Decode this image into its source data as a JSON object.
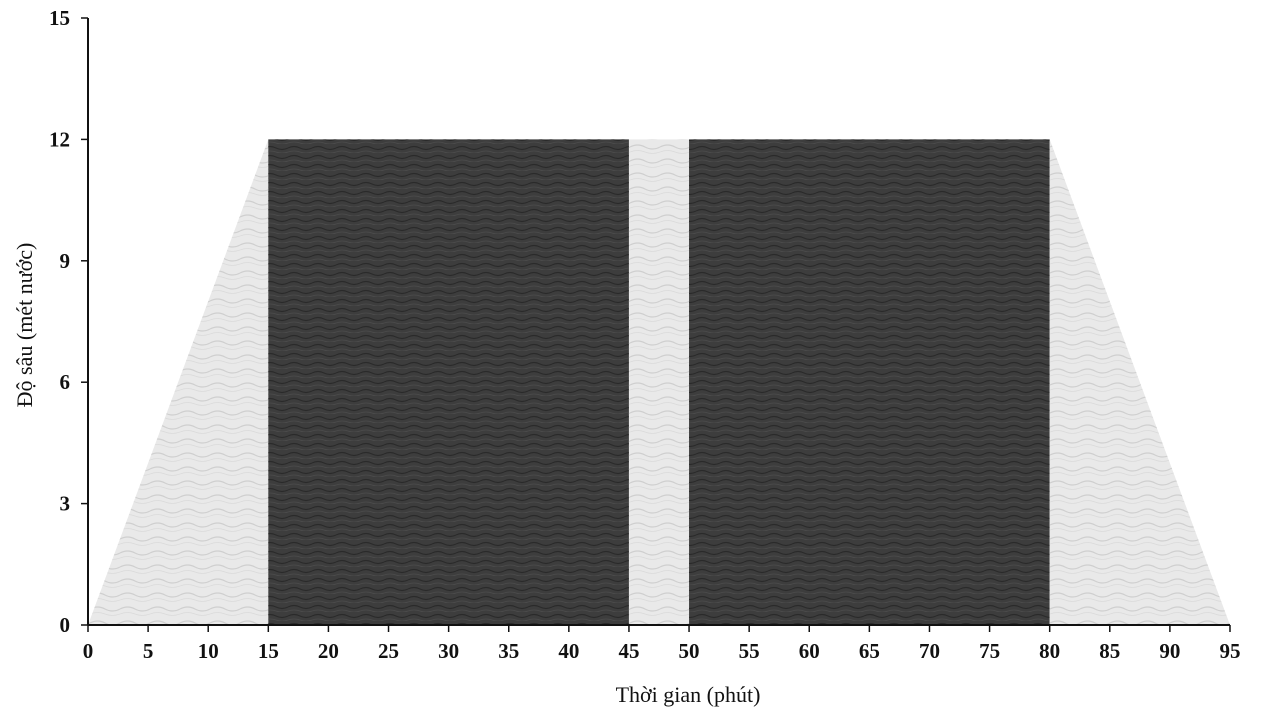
{
  "chart_data": {
    "type": "area",
    "title": "",
    "xlabel": "Thời gian (phút)",
    "ylabel": "Độ sâu (mét nước)",
    "xlim": [
      0,
      95
    ],
    "ylim": [
      0,
      15
    ],
    "x_ticks": [
      "0",
      "5",
      "10",
      "15",
      "20",
      "25",
      "30",
      "35",
      "40",
      "45",
      "50",
      "55",
      "60",
      "65",
      "70",
      "75",
      "80",
      "85",
      "90",
      "95"
    ],
    "y_ticks": [
      "0",
      "3",
      "6",
      "9",
      "12",
      "15"
    ],
    "grid": false,
    "legend": "none",
    "profile": {
      "description_free": true,
      "x": [
        0,
        15,
        80,
        95
      ],
      "y": [
        0,
        12,
        12,
        0
      ]
    },
    "segments": [
      {
        "x": [
          0,
          15
        ],
        "y_top": [
          0,
          12
        ],
        "shade": "light"
      },
      {
        "x": [
          15,
          45
        ],
        "y_top": [
          12,
          12
        ],
        "shade": "dark"
      },
      {
        "x": [
          45,
          50
        ],
        "y_top": [
          12,
          12
        ],
        "shade": "light"
      },
      {
        "x": [
          50,
          80
        ],
        "y_top": [
          12,
          12
        ],
        "shade": "dark"
      },
      {
        "x": [
          80,
          95
        ],
        "y_top": [
          12,
          0
        ],
        "shade": "light"
      }
    ],
    "colors": {
      "dark": "#3d3d3d",
      "light": "#e9e9e9",
      "axis": "#111111"
    }
  }
}
